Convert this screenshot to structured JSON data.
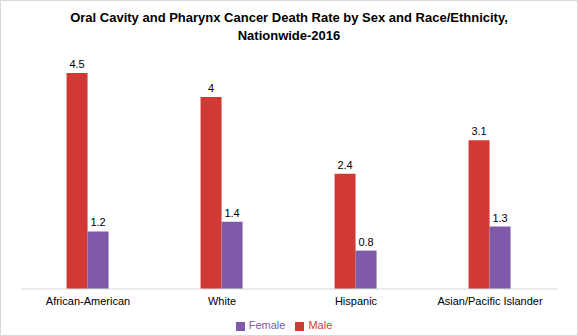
{
  "chart_data": {
    "type": "bar",
    "title": "Oral Cavity and Pharynx Cancer Death Rate by Sex and Race/Ethnicity, Nationwide-2016",
    "categories": [
      "African-American",
      "White",
      "Hispanic",
      "Asian/Pacific Islander"
    ],
    "series": [
      {
        "name": "Male",
        "color": "#d13a34",
        "values": [
          4.5,
          4,
          2.4,
          3.1
        ]
      },
      {
        "name": "Female",
        "color": "#7e5aa8",
        "values": [
          1.2,
          1.4,
          0.8,
          1.3
        ]
      }
    ],
    "data_labels": true,
    "tick_labels": "x",
    "legend": "bottom",
    "grid": false
  }
}
